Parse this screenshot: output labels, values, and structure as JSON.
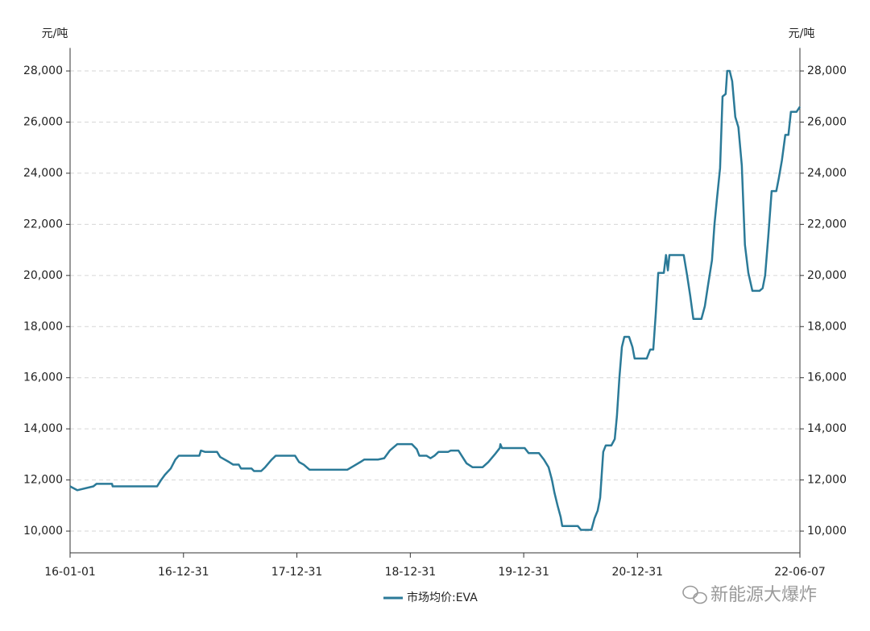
{
  "chart_data": {
    "type": "line",
    "y_label": "元/吨",
    "y2_label": "元/吨",
    "annotation": "新能源大爆炸",
    "x": [
      "16-01-01",
      "16-01-24",
      "16-03-16",
      "16-03-26",
      "16-05-15",
      "16-05-17",
      "16-10-07",
      "16-10-20",
      "16-11-01",
      "16-11-20",
      "16-12-05",
      "16-12-16",
      "17-02-20",
      "17-02-25",
      "17-03-10",
      "17-04-18",
      "17-04-28",
      "17-05-27",
      "17-06-09",
      "17-06-27",
      "17-07-04",
      "17-08-07",
      "17-08-15",
      "17-09-07",
      "17-09-20",
      "17-10-11",
      "17-10-24",
      "17-12-25",
      "18-01-07",
      "18-01-22",
      "18-02-10",
      "18-06-11",
      "18-07-02",
      "18-07-23",
      "18-08-05",
      "18-09-18",
      "18-10-08",
      "18-10-26",
      "18-11-19",
      "19-01-05",
      "19-01-21",
      "19-01-29",
      "19-02-21",
      "19-03-06",
      "19-03-19",
      "19-04-01",
      "19-05-02",
      "19-05-10",
      "19-06-04",
      "19-06-17",
      "19-06-30",
      "19-07-19",
      "19-08-21",
      "19-09-08",
      "19-09-29",
      "19-10-15",
      "19-10-17",
      "19-10-22",
      "20-01-03",
      "20-01-16",
      "20-02-18",
      "20-03-05",
      "20-03-20",
      "20-03-31",
      "20-04-08",
      "20-04-18",
      "20-04-28",
      "20-05-03",
      "20-06-22",
      "20-07-02",
      "20-08-05",
      "20-08-15",
      "20-08-25",
      "20-09-02",
      "20-09-07",
      "20-09-12",
      "20-09-20",
      "20-10-08",
      "20-10-19",
      "20-10-26",
      "20-11-03",
      "20-11-11",
      "20-11-19",
      "20-12-04",
      "20-12-15",
      "20-12-22",
      "21-01-30",
      "21-02-10",
      "21-02-20",
      "21-02-28",
      "21-03-08",
      "21-03-26",
      "21-04-02",
      "21-04-08",
      "21-04-13",
      "21-05-29",
      "21-06-09",
      "21-06-19",
      "21-06-29",
      "21-07-25",
      "21-08-05",
      "21-08-15",
      "21-08-28",
      "21-09-05",
      "21-09-13",
      "21-09-23",
      "21-10-01",
      "21-10-11",
      "21-10-16",
      "21-10-24",
      "21-11-01",
      "21-11-11",
      "21-11-21",
      "21-12-02",
      "21-12-12",
      "21-12-23",
      "22-01-05",
      "22-01-28",
      "22-02-07",
      "22-02-15",
      "22-02-25",
      "22-03-08",
      "22-03-23",
      "22-03-31",
      "22-04-10",
      "22-04-21",
      "22-05-01",
      "22-05-09",
      "22-05-27",
      "22-06-07"
    ],
    "series": [
      {
        "name": "市场均价:EVA",
        "color": "#2b7a98",
        "values": [
          11750,
          11600,
          11750,
          11850,
          11850,
          11750,
          11750,
          12000,
          12200,
          12450,
          12800,
          12950,
          12950,
          13150,
          13100,
          13100,
          12900,
          12700,
          12600,
          12600,
          12450,
          12450,
          12350,
          12350,
          12500,
          12800,
          12950,
          12950,
          12700,
          12600,
          12400,
          12400,
          12550,
          12700,
          12800,
          12800,
          12850,
          13150,
          13400,
          13400,
          13200,
          12950,
          12950,
          12850,
          12950,
          13100,
          13100,
          13150,
          13150,
          12900,
          12650,
          12500,
          12500,
          12700,
          13000,
          13250,
          13400,
          13250,
          13250,
          13050,
          13050,
          12800,
          12500,
          12000,
          11500,
          11000,
          10550,
          10200,
          10200,
          10050,
          10050,
          10500,
          10800,
          11300,
          12200,
          13100,
          13350,
          13350,
          13600,
          14500,
          16000,
          17200,
          17600,
          17600,
          17200,
          16750,
          16750,
          17100,
          17100,
          18500,
          20100,
          20100,
          20800,
          20200,
          20800,
          20800,
          20000,
          19200,
          18300,
          18300,
          18800,
          19600,
          20600,
          22000,
          23000,
          24200,
          27000,
          27100,
          28000,
          28000,
          27600,
          26200,
          25800,
          24300,
          21200,
          20100,
          19400,
          19400,
          19500,
          20000,
          21500,
          23300,
          23300,
          23800,
          24500,
          25500,
          25500,
          26400,
          26400,
          26600
        ]
      }
    ],
    "xlim": [
      "16-01-01",
      "22-06-07"
    ],
    "xticks": [
      "16-01-01",
      "16-12-31",
      "17-12-31",
      "18-12-31",
      "19-12-31",
      "20-12-31",
      "22-06-07"
    ],
    "ylim": [
      9150,
      28900
    ],
    "yticks": [
      {
        "value": 10000,
        "label": "10,000"
      },
      {
        "value": 12000,
        "label": "12,000"
      },
      {
        "value": 14000,
        "label": "14,000"
      },
      {
        "value": 16000,
        "label": "16,000"
      },
      {
        "value": 18000,
        "label": "18,000"
      },
      {
        "value": 20000,
        "label": "20,000"
      },
      {
        "value": 22000,
        "label": "22,000"
      },
      {
        "value": 24000,
        "label": "24,000"
      },
      {
        "value": 26000,
        "label": "26,000"
      },
      {
        "value": 28000,
        "label": "28,000"
      }
    ],
    "y2lim": [
      9150,
      28900
    ],
    "y2ticks": [
      {
        "value": 10000,
        "label": "10,000"
      },
      {
        "value": 12000,
        "label": "12,000"
      },
      {
        "value": 14000,
        "label": "14,000"
      },
      {
        "value": 16000,
        "label": "16,000"
      },
      {
        "value": 18000,
        "label": "18,000"
      },
      {
        "value": 20000,
        "label": "20,000"
      },
      {
        "value": 22000,
        "label": "22,000"
      },
      {
        "value": 24000,
        "label": "24,000"
      },
      {
        "value": 26000,
        "label": "26,000"
      },
      {
        "value": 28000,
        "label": "28,000"
      }
    ],
    "grid": true,
    "legend": "bottom"
  }
}
